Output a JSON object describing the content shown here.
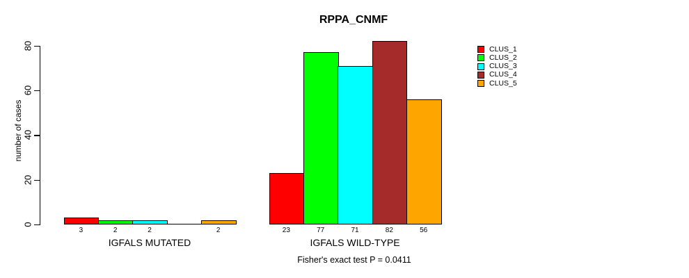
{
  "chart_data": {
    "type": "bar",
    "title": "RPPA_CNMF",
    "xlabel": "",
    "ylabel": "number of cases",
    "ylim": [
      0,
      80
    ],
    "yticks": [
      0,
      20,
      40,
      60,
      80
    ],
    "grid": false,
    "legend_position": "right-outside",
    "categories": [
      "IGFALS MUTATED",
      "IGFALS WILD-TYPE"
    ],
    "series": [
      {
        "name": "CLUS_1",
        "color": "#FF0000",
        "values": [
          3,
          23
        ]
      },
      {
        "name": "CLUS_2",
        "color": "#00FF00",
        "values": [
          2,
          77
        ]
      },
      {
        "name": "CLUS_3",
        "color": "#00FFFF",
        "values": [
          2,
          71
        ]
      },
      {
        "name": "CLUS_4",
        "color": "#A52A2A",
        "values": [
          0,
          82
        ]
      },
      {
        "name": "CLUS_5",
        "color": "#FFA500",
        "values": [
          2,
          56
        ]
      }
    ],
    "bar_value_labels": {
      "IGFALS MUTATED": [
        "3",
        "2",
        "2",
        "",
        "2"
      ],
      "IGFALS WILD-TYPE": [
        "23",
        "77",
        "71",
        "82",
        "56"
      ]
    },
    "annotation": "Fisher's exact test P = 0.0411"
  },
  "colors": {
    "axis": "#000000",
    "background": "#ffffff",
    "text": "#000000"
  }
}
